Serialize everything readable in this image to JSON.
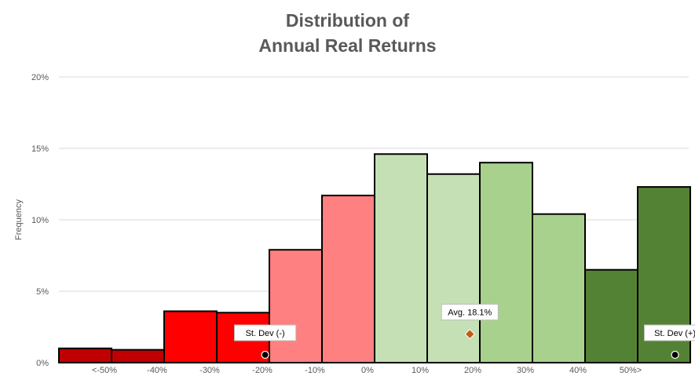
{
  "chart_data": {
    "type": "bar",
    "title_lines": [
      "Distribution of",
      "Annual Real Returns"
    ],
    "ylabel": "Frequency",
    "ylim": [
      0,
      20
    ],
    "yticks": [
      0,
      5,
      10,
      15,
      20
    ],
    "ytick_labels": [
      "0%",
      "5%",
      "10%",
      "15%",
      "20%"
    ],
    "xtick_labels": [
      "<-50%",
      "-40%",
      "-30%",
      "-20%",
      "-10%",
      "0%",
      "10%",
      "20%",
      "30%",
      "40%",
      "50%>"
    ],
    "grid": true,
    "bars": [
      {
        "value": 1.0,
        "color": "#c00000"
      },
      {
        "value": 0.9,
        "color": "#c00000"
      },
      {
        "value": 3.6,
        "color": "#ff0000"
      },
      {
        "value": 3.5,
        "color": "#ff0000"
      },
      {
        "value": 7.9,
        "color": "#ff8080"
      },
      {
        "value": 11.7,
        "color": "#ff8080"
      },
      {
        "value": 14.6,
        "color": "#c5e0b4"
      },
      {
        "value": 13.2,
        "color": "#c5e0b4"
      },
      {
        "value": 14.0,
        "color": "#a9d18e"
      },
      {
        "value": 10.4,
        "color": "#a9d18e"
      },
      {
        "value": 6.5,
        "color": "#548235"
      },
      {
        "value": 12.3,
        "color": "#548235"
      }
    ],
    "markers": [
      {
        "label": "Avg. 18.1%",
        "x_return": 18.1,
        "y": 2.0,
        "shape": "diamond",
        "color": "#c55a11"
      },
      {
        "label": "St. Dev (-)",
        "x_return": -20.8,
        "y": 0.55,
        "shape": "circle",
        "color": "#000000"
      },
      {
        "label": "St. Dev (+)",
        "x_return": 57.1,
        "y": 0.55,
        "shape": "circle",
        "color": "#000000"
      }
    ]
  }
}
